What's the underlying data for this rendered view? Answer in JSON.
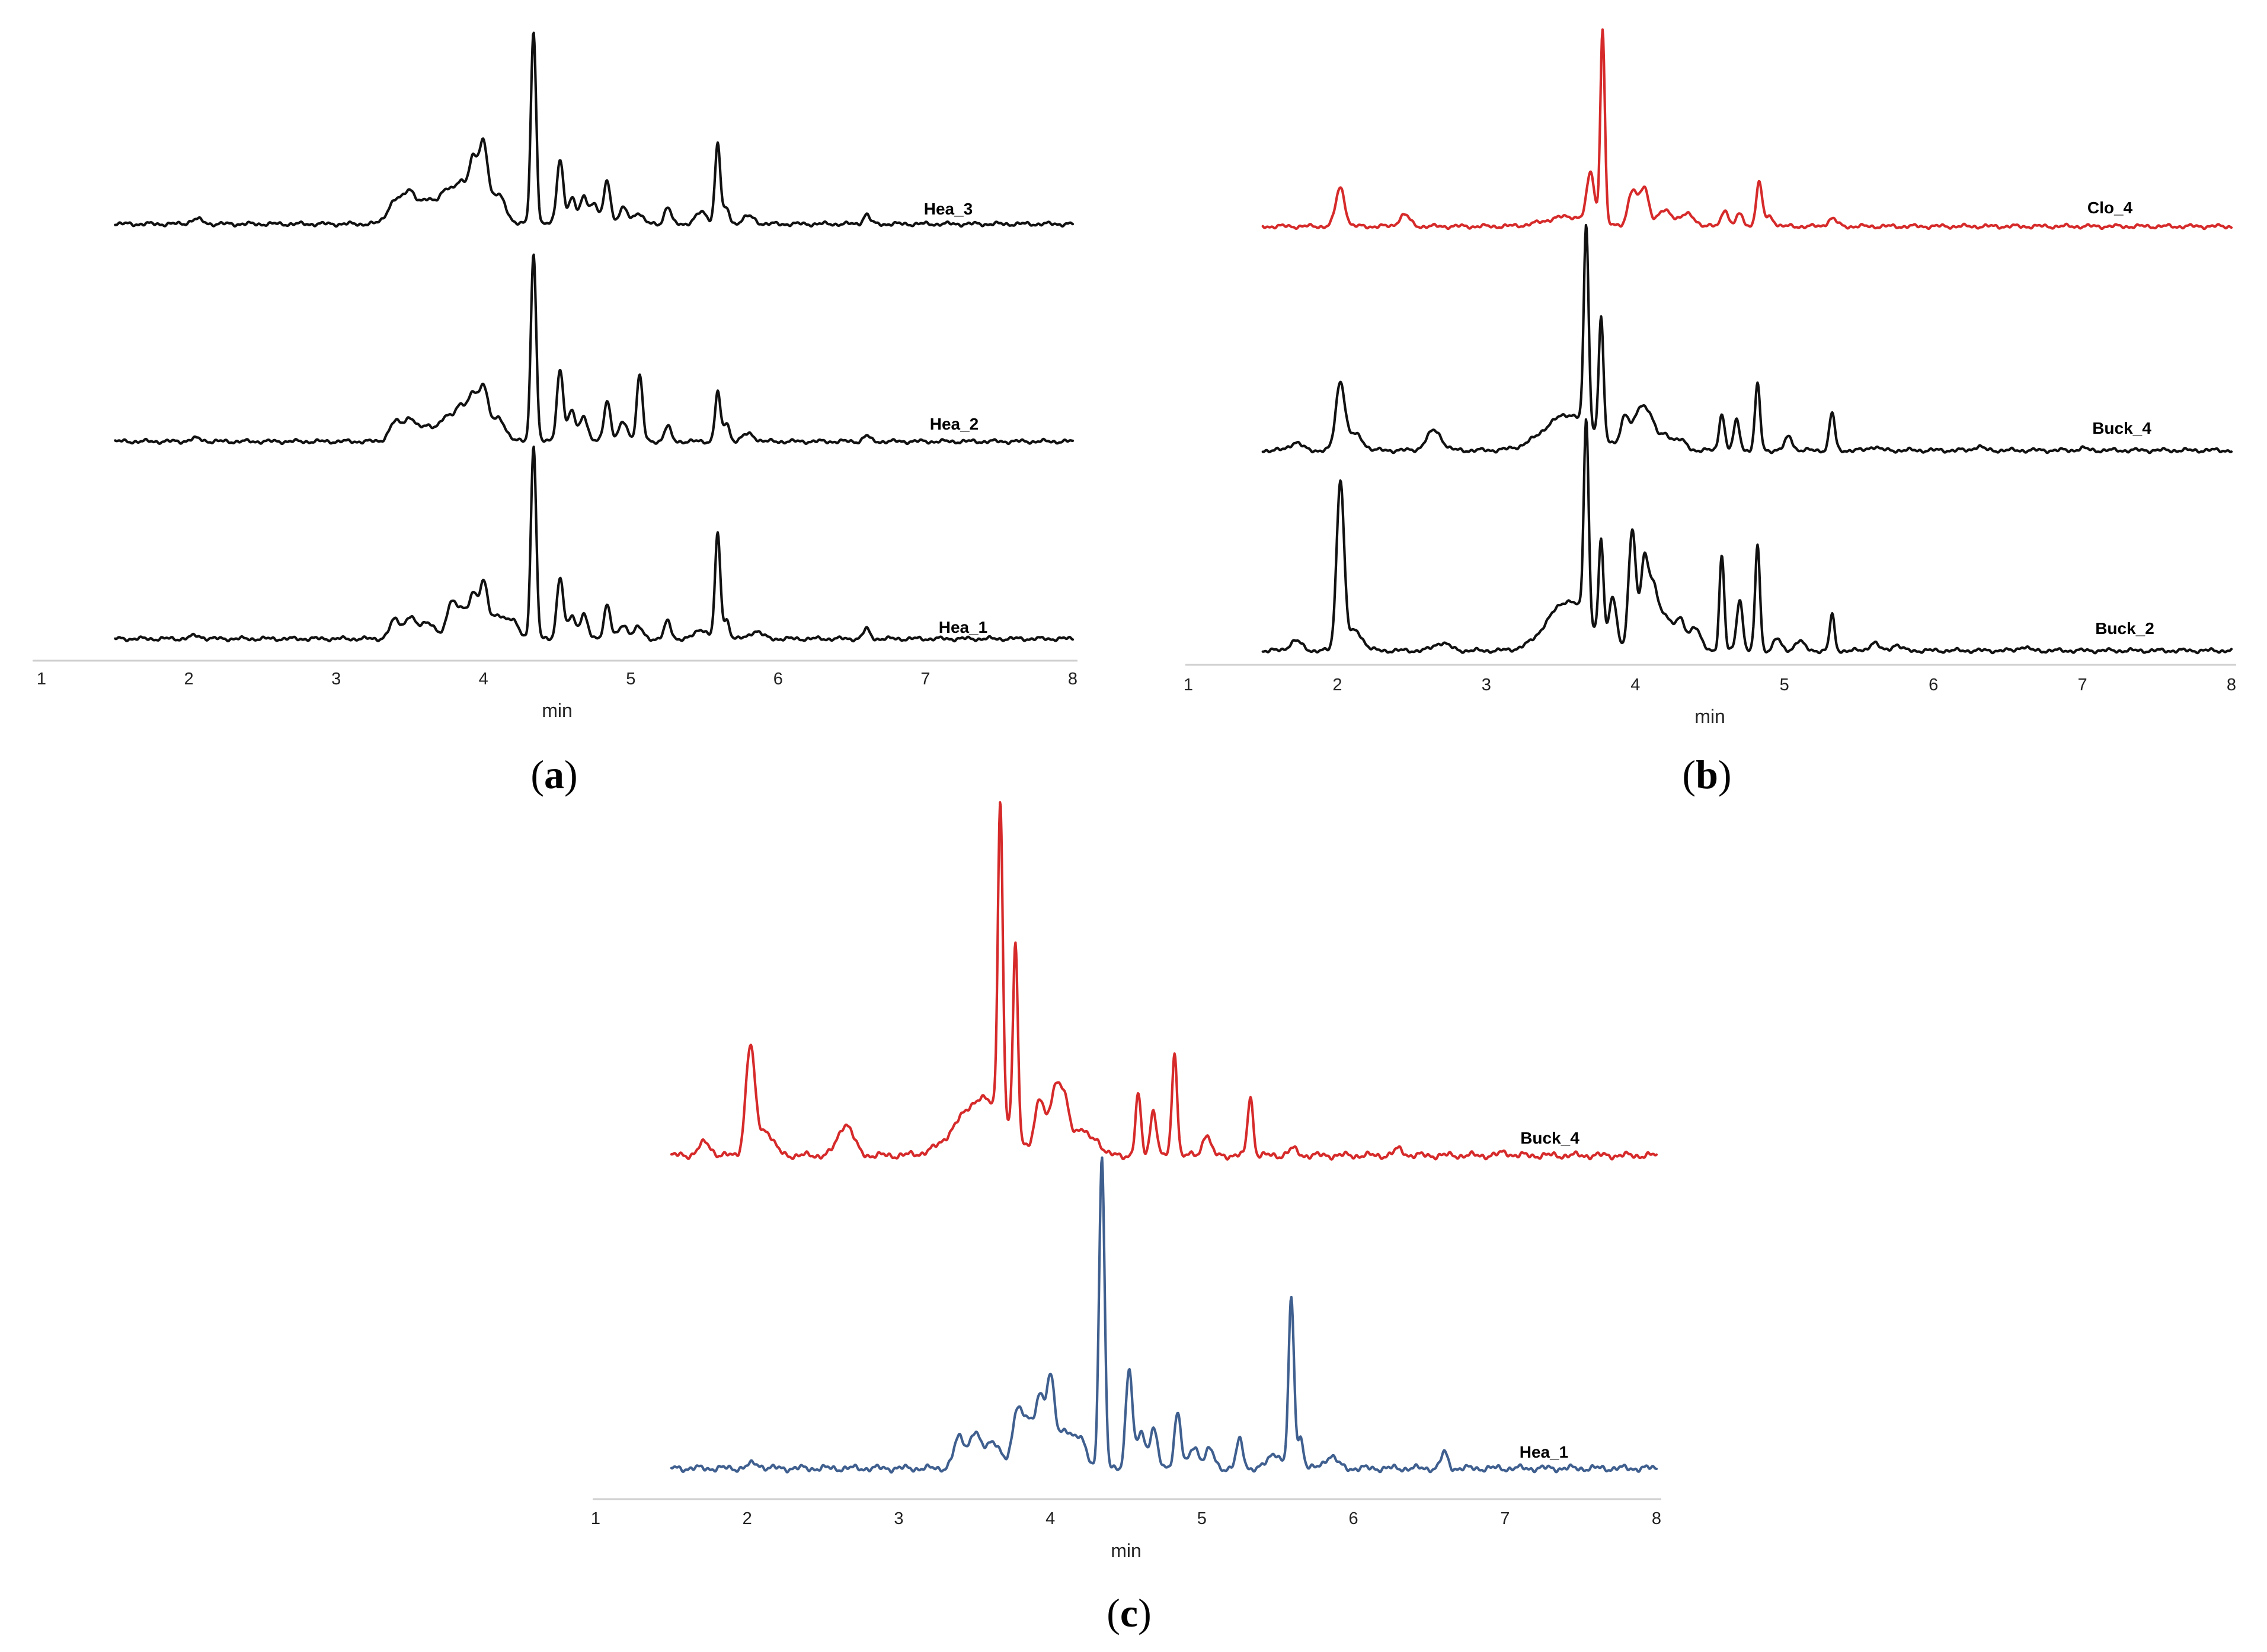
{
  "chart_data": [
    {
      "type": "line",
      "panel_label": {
        "open": "(",
        "letter": "a",
        "close": ")"
      },
      "xlabel": "min",
      "xlim": [
        1,
        8
      ],
      "ticks": [
        "1",
        "2",
        "3",
        "4",
        "5",
        "6",
        "7",
        "8"
      ],
      "color": "#111111",
      "series": [
        {
          "name": "Hea_3",
          "peaks": [
            [
              2.05,
              0.025,
              0.04
            ],
            [
              3.4,
              0.12,
              0.05
            ],
            [
              3.5,
              0.15,
              0.04
            ],
            [
              3.62,
              0.12,
              0.06
            ],
            [
              3.75,
              0.16,
              0.05
            ],
            [
              3.85,
              0.2,
              0.04
            ],
            [
              3.93,
              0.3,
              0.03
            ],
            [
              4.0,
              0.4,
              0.03
            ],
            [
              4.1,
              0.15,
              0.05
            ],
            [
              4.34,
              1.0,
              0.018
            ],
            [
              4.52,
              0.34,
              0.022
            ],
            [
              4.6,
              0.13,
              0.025
            ],
            [
              4.68,
              0.14,
              0.025
            ],
            [
              4.75,
              0.1,
              0.03
            ],
            [
              4.84,
              0.23,
              0.022
            ],
            [
              4.95,
              0.08,
              0.03
            ],
            [
              5.05,
              0.06,
              0.03
            ],
            [
              5.25,
              0.09,
              0.022
            ],
            [
              5.48,
              0.06,
              0.04
            ],
            [
              5.59,
              0.42,
              0.018
            ],
            [
              5.65,
              0.08,
              0.02
            ],
            [
              5.8,
              0.04,
              0.04
            ],
            [
              6.6,
              0.05,
              0.022
            ]
          ]
        },
        {
          "name": "Hea_2",
          "peaks": [
            [
              2.05,
              0.015,
              0.04
            ],
            [
              3.4,
              0.1,
              0.04
            ],
            [
              3.5,
              0.12,
              0.04
            ],
            [
              3.62,
              0.08,
              0.05
            ],
            [
              3.75,
              0.12,
              0.05
            ],
            [
              3.85,
              0.18,
              0.04
            ],
            [
              3.93,
              0.22,
              0.03
            ],
            [
              4.0,
              0.28,
              0.03
            ],
            [
              4.1,
              0.12,
              0.05
            ],
            [
              4.34,
              1.0,
              0.018
            ],
            [
              4.52,
              0.38,
              0.022
            ],
            [
              4.6,
              0.16,
              0.025
            ],
            [
              4.68,
              0.14,
              0.025
            ],
            [
              4.84,
              0.22,
              0.022
            ],
            [
              4.95,
              0.1,
              0.03
            ],
            [
              5.06,
              0.35,
              0.02
            ],
            [
              5.25,
              0.08,
              0.022
            ],
            [
              5.59,
              0.26,
              0.018
            ],
            [
              5.65,
              0.1,
              0.02
            ],
            [
              5.8,
              0.04,
              0.04
            ],
            [
              6.6,
              0.03,
              0.022
            ]
          ]
        },
        {
          "name": "Hea_1",
          "peaks": [
            [
              2.05,
              0.015,
              0.04
            ],
            [
              3.4,
              0.1,
              0.035
            ],
            [
              3.5,
              0.11,
              0.035
            ],
            [
              3.62,
              0.09,
              0.05
            ],
            [
              3.78,
              0.18,
              0.03
            ],
            [
              3.85,
              0.15,
              0.035
            ],
            [
              3.93,
              0.22,
              0.028
            ],
            [
              4.0,
              0.28,
              0.028
            ],
            [
              4.1,
              0.12,
              0.05
            ],
            [
              4.2,
              0.08,
              0.04
            ],
            [
              4.34,
              1.0,
              0.018
            ],
            [
              4.52,
              0.32,
              0.022
            ],
            [
              4.6,
              0.12,
              0.025
            ],
            [
              4.68,
              0.13,
              0.025
            ],
            [
              4.84,
              0.18,
              0.022
            ],
            [
              4.95,
              0.07,
              0.03
            ],
            [
              5.05,
              0.06,
              0.03
            ],
            [
              5.25,
              0.09,
              0.022
            ],
            [
              5.48,
              0.05,
              0.04
            ],
            [
              5.59,
              0.54,
              0.018
            ],
            [
              5.65,
              0.1,
              0.02
            ],
            [
              5.85,
              0.04,
              0.04
            ],
            [
              6.6,
              0.05,
              0.022
            ]
          ]
        }
      ]
    },
    {
      "type": "line",
      "panel_label": {
        "open": "(",
        "letter": "b",
        "close": ")"
      },
      "xlabel": "min",
      "xlim": [
        1,
        8
      ],
      "ticks": [
        "1",
        "2",
        "3",
        "4",
        "5",
        "6",
        "7",
        "8"
      ],
      "series": [
        {
          "name": "Clo_4",
          "color": "#d62a2a",
          "peaks": [
            [
              2.02,
              0.2,
              0.03
            ],
            [
              2.45,
              0.06,
              0.035
            ],
            [
              3.55,
              0.05,
              0.15
            ],
            [
              3.7,
              0.25,
              0.025
            ],
            [
              3.78,
              1.0,
              0.015
            ],
            [
              3.98,
              0.18,
              0.03
            ],
            [
              4.06,
              0.2,
              0.03
            ],
            [
              4.2,
              0.08,
              0.05
            ],
            [
              4.35,
              0.06,
              0.05
            ],
            [
              4.6,
              0.09,
              0.022
            ],
            [
              4.7,
              0.06,
              0.025
            ],
            [
              4.83,
              0.22,
              0.02
            ],
            [
              4.9,
              0.05,
              0.03
            ],
            [
              5.32,
              0.04,
              0.03
            ]
          ]
        },
        {
          "name": "Buck_4",
          "color": "#111111",
          "peaks": [
            [
              1.72,
              0.04,
              0.04
            ],
            [
              2.02,
              0.34,
              0.03
            ],
            [
              2.12,
              0.08,
              0.05
            ],
            [
              2.65,
              0.1,
              0.05
            ],
            [
              3.55,
              0.18,
              0.16
            ],
            [
              3.67,
              1.0,
              0.016
            ],
            [
              3.77,
              0.6,
              0.016
            ],
            [
              3.93,
              0.16,
              0.03
            ],
            [
              4.03,
              0.2,
              0.04
            ],
            [
              4.1,
              0.14,
              0.035
            ],
            [
              4.2,
              0.08,
              0.04
            ],
            [
              4.3,
              0.05,
              0.04
            ],
            [
              4.58,
              0.19,
              0.018
            ],
            [
              4.68,
              0.15,
              0.02
            ],
            [
              4.82,
              0.33,
              0.017
            ],
            [
              5.03,
              0.07,
              0.025
            ],
            [
              5.32,
              0.19,
              0.018
            ],
            [
              5.6,
              0.02,
              0.03
            ],
            [
              6.3,
              0.02,
              0.03
            ],
            [
              7.0,
              0.01,
              0.03
            ]
          ]
        },
        {
          "name": "Buck_2",
          "color": "#111111",
          "peaks": [
            [
              1.72,
              0.05,
              0.04
            ],
            [
              2.02,
              0.85,
              0.025
            ],
            [
              2.12,
              0.1,
              0.05
            ],
            [
              2.7,
              0.04,
              0.05
            ],
            [
              3.55,
              0.25,
              0.14
            ],
            [
              3.67,
              1.0,
              0.016
            ],
            [
              3.77,
              0.48,
              0.016
            ],
            [
              3.85,
              0.25,
              0.025
            ],
            [
              3.98,
              0.6,
              0.025
            ],
            [
              4.06,
              0.45,
              0.025
            ],
            [
              4.12,
              0.3,
              0.03
            ],
            [
              4.2,
              0.18,
              0.04
            ],
            [
              4.3,
              0.15,
              0.035
            ],
            [
              4.4,
              0.12,
              0.035
            ],
            [
              4.58,
              0.48,
              0.016
            ],
            [
              4.7,
              0.26,
              0.02
            ],
            [
              4.82,
              0.53,
              0.016
            ],
            [
              4.95,
              0.06,
              0.025
            ],
            [
              5.1,
              0.05,
              0.03
            ],
            [
              5.32,
              0.18,
              0.016
            ],
            [
              5.6,
              0.04,
              0.03
            ],
            [
              5.75,
              0.03,
              0.03
            ],
            [
              6.6,
              0.02,
              0.03
            ]
          ]
        }
      ]
    },
    {
      "type": "line",
      "panel_label": {
        "open": "(",
        "letter": "c",
        "close": ")"
      },
      "xlabel": "min",
      "xlim": [
        1,
        8
      ],
      "ticks": [
        "1",
        "2",
        "3",
        "4",
        "5",
        "6",
        "7",
        "8"
      ],
      "series": [
        {
          "name": "Buck_4",
          "color": "#d62a2a",
          "peaks": [
            [
              1.72,
              0.04,
              0.04
            ],
            [
              2.02,
              0.34,
              0.03
            ],
            [
              2.12,
              0.08,
              0.05
            ],
            [
              2.65,
              0.1,
              0.05
            ],
            [
              3.55,
              0.18,
              0.16
            ],
            [
              3.67,
              1.0,
              0.016
            ],
            [
              3.77,
              0.6,
              0.016
            ],
            [
              3.93,
              0.16,
              0.03
            ],
            [
              4.03,
              0.2,
              0.04
            ],
            [
              4.1,
              0.14,
              0.035
            ],
            [
              4.2,
              0.08,
              0.04
            ],
            [
              4.3,
              0.05,
              0.04
            ],
            [
              4.58,
              0.19,
              0.018
            ],
            [
              4.68,
              0.15,
              0.02
            ],
            [
              4.82,
              0.33,
              0.017
            ],
            [
              5.03,
              0.07,
              0.025
            ],
            [
              5.32,
              0.19,
              0.018
            ],
            [
              5.6,
              0.02,
              0.03
            ],
            [
              6.3,
              0.02,
              0.03
            ],
            [
              7.0,
              0.01,
              0.03
            ]
          ]
        },
        {
          "name": "Hea_1",
          "color": "#3f5f8f",
          "peaks": [
            [
              2.05,
              0.015,
              0.04
            ],
            [
              3.4,
              0.1,
              0.035
            ],
            [
              3.5,
              0.11,
              0.035
            ],
            [
              3.62,
              0.09,
              0.05
            ],
            [
              3.78,
              0.18,
              0.03
            ],
            [
              3.85,
              0.15,
              0.035
            ],
            [
              3.93,
              0.22,
              0.028
            ],
            [
              4.0,
              0.28,
              0.028
            ],
            [
              4.1,
              0.12,
              0.05
            ],
            [
              4.2,
              0.08,
              0.04
            ],
            [
              4.34,
              1.0,
              0.018
            ],
            [
              4.52,
              0.32,
              0.022
            ],
            [
              4.6,
              0.12,
              0.025
            ],
            [
              4.68,
              0.13,
              0.025
            ],
            [
              4.84,
              0.18,
              0.022
            ],
            [
              4.95,
              0.07,
              0.03
            ],
            [
              5.05,
              0.06,
              0.03
            ],
            [
              5.25,
              0.09,
              0.022
            ],
            [
              5.48,
              0.05,
              0.04
            ],
            [
              5.59,
              0.54,
              0.018
            ],
            [
              5.65,
              0.1,
              0.02
            ],
            [
              5.85,
              0.04,
              0.04
            ],
            [
              6.6,
              0.05,
              0.022
            ]
          ]
        }
      ]
    }
  ]
}
